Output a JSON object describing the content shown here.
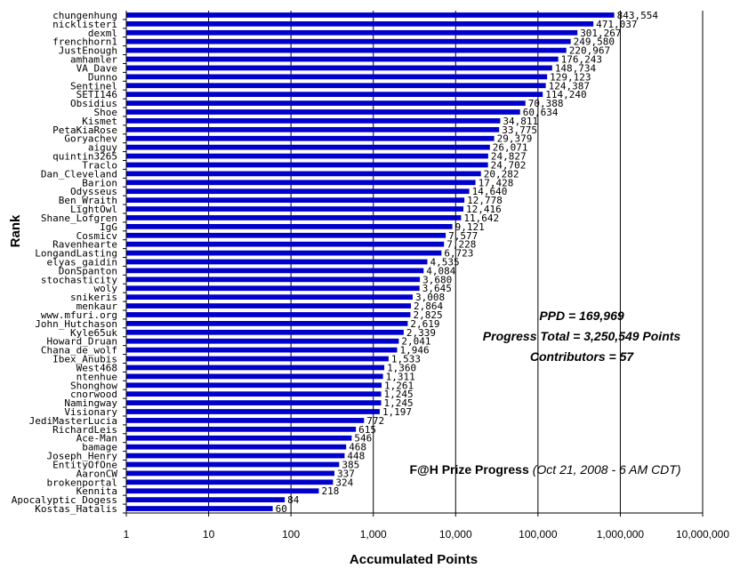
{
  "chart_data": {
    "type": "bar",
    "orientation": "horizontal",
    "x_scale": "log",
    "xlim": [
      1,
      10000000
    ],
    "xlabel": "Accumulated Points",
    "ylabel": "Rank",
    "bar_color": "#0000cc",
    "grid": "vertical",
    "x_ticks": [
      "1",
      "10",
      "100",
      "1,000",
      "10,000",
      "100,000",
      "1,000,000",
      "10,000,000"
    ],
    "categories": [
      "chungenhung",
      "nicklisteri",
      "dexml",
      "frenchhorn1",
      "JustEnough",
      "amhamler",
      "VA_Dave",
      "Dunno",
      "Sentinel",
      "SETI146",
      "Obsidius",
      "Shoe",
      "Kismet",
      "PetaKiaRose",
      "Goryachev",
      "aiguy",
      "quintin3265",
      "Traclo",
      "Dan_Cleveland",
      "Barion",
      "Odysseus",
      "Ben_Wraith",
      "LightOwl",
      "Shane_Lofgren",
      "IgG",
      "Cosmicv",
      "Ravenhearte",
      "LongandLasting",
      "elyas_gaidin",
      "DonSpanton",
      "stochasticity",
      "woly",
      "snikeris",
      "menkaur",
      "www.mfuri.org",
      "John_Hutchason",
      "Kyle65uk",
      "Howard_Druan",
      "Chana_de_wolf",
      "Ibex_Anubis",
      "West468",
      "ntenhue",
      "Shonghow",
      "cnorwood",
      "Namingway",
      "Visionary",
      "JediMasterLucia",
      "RichardLeis",
      "Ace-Man",
      "bamage",
      "Joseph_Henry",
      "EntityOfOne",
      "AaronCW",
      "brokenportal",
      "Kennita",
      "Apocalyptic_Dogess",
      "Kostas_Hatalis"
    ],
    "values": [
      843554,
      471037,
      301267,
      249580,
      220967,
      176243,
      148734,
      129123,
      124387,
      114240,
      70388,
      60634,
      34811,
      33775,
      29379,
      26071,
      24827,
      24702,
      20282,
      17428,
      14640,
      12778,
      12416,
      11642,
      9121,
      7577,
      7228,
      6723,
      4535,
      4084,
      3680,
      3645,
      3008,
      2864,
      2825,
      2619,
      2339,
      2041,
      1946,
      1533,
      1360,
      1311,
      1261,
      1245,
      1245,
      1197,
      772,
      615,
      546,
      468,
      448,
      385,
      337,
      324,
      218,
      84,
      60
    ],
    "data_labels": [
      "843,554",
      "471,037",
      "301,267",
      "249,580",
      "220,967",
      "176,243",
      "148,734",
      "129,123",
      "124,387",
      "114,240",
      "70,388",
      "60,634",
      "34,811",
      "33,775",
      "29,379",
      "26,071",
      "24,827",
      "24,702",
      "20,282",
      "17,428",
      "14,640",
      "12,778",
      "12,416",
      "11,642",
      "9,121",
      "7,577",
      "7,228",
      "6,723",
      "4,535",
      "4,084",
      "3,680",
      "3,645",
      "3,008",
      "2,864",
      "2,825",
      "2,619",
      "2,339",
      "2,041",
      "1,946",
      "1,533",
      "1,360",
      "1,311",
      "1,261",
      "1,245",
      "1,245",
      "1,197",
      "772",
      "615",
      "546",
      "468",
      "448",
      "385",
      "337",
      "324",
      "218",
      "84",
      "60"
    ],
    "annotations": {
      "ppd": "PPD = 169,969",
      "progress_total": "Progress Total = 3,250,549 Points",
      "contributors": "Contributors = 57"
    },
    "caption": {
      "main": "F@H Prize Progress",
      "sub": "(Oct 21, 2008 - 6 AM CDT)"
    }
  }
}
